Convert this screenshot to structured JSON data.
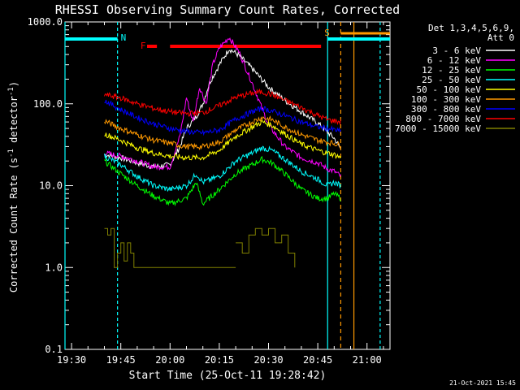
{
  "chart_data": {
    "type": "line",
    "title": "RHESSI Observing Summary Count Rates, Corrected",
    "xlabel": "Start Time (25-Oct-11 19:28:42)",
    "ylabel": "Corrected Count Rate (s⁻¹ detector⁻¹)",
    "ylabel_main": "Corrected Count Rate (s",
    "ylabel_sup1": "-1",
    "ylabel_mid": " detector",
    "ylabel_sup2": "-1",
    "ylabel_end": ")",
    "y_scale": "log",
    "ylim": [
      0.1,
      1000
    ],
    "y_ticks": [
      "1000.0",
      "100.0",
      "10.0",
      "1.0",
      "0.1"
    ],
    "xlim": [
      "19:28",
      "21:07"
    ],
    "x_ticks": [
      "19:30",
      "19:45",
      "20:00",
      "20:15",
      "20:30",
      "20:45",
      "21:00"
    ],
    "legend_header": [
      "Det 1,3,4,5,6,9,",
      "Att 0"
    ],
    "legend_position": "top-right",
    "timestamp": "21-Oct-2021 15:45",
    "markers": {
      "N": "N",
      "F": "F",
      "S": "S"
    },
    "series": [
      {
        "name": "3 - 6 keV",
        "color": "#ffffff",
        "points": [
          [
            "19:40",
            24
          ],
          [
            "19:45",
            22
          ],
          [
            "19:50",
            19
          ],
          [
            "19:55",
            17
          ],
          [
            "20:00",
            18
          ],
          [
            "20:03",
            30
          ],
          [
            "20:05",
            50
          ],
          [
            "20:08",
            70
          ],
          [
            "20:10",
            100
          ],
          [
            "20:12",
            180
          ],
          [
            "20:15",
            300
          ],
          [
            "20:18",
            470
          ],
          [
            "20:21",
            390
          ],
          [
            "20:25",
            270
          ],
          [
            "20:30",
            160
          ],
          [
            "20:35",
            110
          ],
          [
            "20:40",
            80
          ],
          [
            "20:45",
            58
          ],
          [
            "20:48",
            45
          ],
          [
            "20:50",
            38
          ],
          [
            "20:52",
            28
          ]
        ]
      },
      {
        "name": "6 - 12 keV",
        "color": "#ff00ff",
        "points": [
          [
            "19:40",
            25
          ],
          [
            "19:45",
            23
          ],
          [
            "19:50",
            20
          ],
          [
            "19:55",
            17
          ],
          [
            "20:00",
            17
          ],
          [
            "20:03",
            40
          ],
          [
            "20:05",
            120
          ],
          [
            "20:07",
            60
          ],
          [
            "20:09",
            160
          ],
          [
            "20:11",
            100
          ],
          [
            "20:13",
            300
          ],
          [
            "20:15",
            480
          ],
          [
            "20:18",
            650
          ],
          [
            "20:21",
            430
          ],
          [
            "20:25",
            180
          ],
          [
            "20:30",
            55
          ],
          [
            "20:35",
            30
          ],
          [
            "20:40",
            22
          ],
          [
            "20:45",
            19
          ],
          [
            "20:48",
            16
          ],
          [
            "20:50",
            15
          ],
          [
            "20:52",
            13
          ]
        ]
      },
      {
        "name": "12 - 25 keV",
        "color": "#00ff00",
        "points": [
          [
            "19:40",
            20
          ],
          [
            "19:45",
            14
          ],
          [
            "19:50",
            10
          ],
          [
            "19:55",
            7.5
          ],
          [
            "20:00",
            6
          ],
          [
            "20:05",
            7
          ],
          [
            "20:08",
            11
          ],
          [
            "20:10",
            6
          ],
          [
            "20:15",
            9
          ],
          [
            "20:20",
            14
          ],
          [
            "20:25",
            18
          ],
          [
            "20:28",
            21
          ],
          [
            "20:31",
            19
          ],
          [
            "20:35",
            14
          ],
          [
            "20:40",
            9
          ],
          [
            "20:45",
            7
          ],
          [
            "20:48",
            7
          ],
          [
            "20:50",
            8
          ],
          [
            "20:52",
            7
          ]
        ]
      },
      {
        "name": "25 - 50 keV",
        "color": "#00ffff",
        "points": [
          [
            "19:40",
            23
          ],
          [
            "19:45",
            18
          ],
          [
            "19:50",
            13
          ],
          [
            "19:55",
            10
          ],
          [
            "20:00",
            9
          ],
          [
            "20:05",
            10
          ],
          [
            "20:08",
            14
          ],
          [
            "20:10",
            11
          ],
          [
            "20:15",
            13
          ],
          [
            "20:20",
            20
          ],
          [
            "20:25",
            25
          ],
          [
            "20:28",
            29
          ],
          [
            "20:31",
            27
          ],
          [
            "20:35",
            21
          ],
          [
            "20:40",
            15
          ],
          [
            "20:45",
            12
          ],
          [
            "20:48",
            10
          ],
          [
            "20:50",
            11
          ],
          [
            "20:52",
            10
          ]
        ]
      },
      {
        "name": "50 - 100 keV",
        "color": "#ffff00",
        "points": [
          [
            "19:40",
            43
          ],
          [
            "19:45",
            36
          ],
          [
            "19:50",
            29
          ],
          [
            "19:55",
            25
          ],
          [
            "20:00",
            23
          ],
          [
            "20:05",
            22
          ],
          [
            "20:10",
            22
          ],
          [
            "20:15",
            27
          ],
          [
            "20:20",
            40
          ],
          [
            "20:25",
            52
          ],
          [
            "20:28",
            60
          ],
          [
            "20:31",
            55
          ],
          [
            "20:35",
            43
          ],
          [
            "20:40",
            32
          ],
          [
            "20:45",
            27
          ],
          [
            "20:48",
            25
          ],
          [
            "20:50",
            24
          ],
          [
            "20:52",
            22
          ]
        ]
      },
      {
        "name": "100 - 300 keV",
        "color": "#ff9900",
        "points": [
          [
            "19:40",
            62
          ],
          [
            "19:45",
            50
          ],
          [
            "19:50",
            42
          ],
          [
            "19:55",
            36
          ],
          [
            "20:00",
            33
          ],
          [
            "20:05",
            30
          ],
          [
            "20:10",
            30
          ],
          [
            "20:15",
            34
          ],
          [
            "20:20",
            48
          ],
          [
            "20:25",
            60
          ],
          [
            "20:28",
            68
          ],
          [
            "20:31",
            64
          ],
          [
            "20:35",
            52
          ],
          [
            "20:40",
            42
          ],
          [
            "20:45",
            36
          ],
          [
            "20:48",
            34
          ],
          [
            "20:50",
            33
          ],
          [
            "20:52",
            31
          ]
        ]
      },
      {
        "name": "300 - 800 keV",
        "color": "#0000ff",
        "points": [
          [
            "19:40",
            110
          ],
          [
            "19:45",
            85
          ],
          [
            "19:50",
            68
          ],
          [
            "19:55",
            57
          ],
          [
            "20:00",
            50
          ],
          [
            "20:05",
            46
          ],
          [
            "20:10",
            44
          ],
          [
            "20:15",
            48
          ],
          [
            "20:20",
            65
          ],
          [
            "20:25",
            80
          ],
          [
            "20:28",
            88
          ],
          [
            "20:31",
            82
          ],
          [
            "20:35",
            72
          ],
          [
            "20:40",
            60
          ],
          [
            "20:45",
            52
          ],
          [
            "20:48",
            50
          ],
          [
            "20:50",
            48
          ],
          [
            "20:52",
            46
          ]
        ]
      },
      {
        "name": "800 - 7000 keV",
        "color": "#ff0000",
        "points": [
          [
            "19:40",
            130
          ],
          [
            "19:45",
            118
          ],
          [
            "19:50",
            100
          ],
          [
            "19:55",
            88
          ],
          [
            "20:00",
            80
          ],
          [
            "20:05",
            76
          ],
          [
            "20:10",
            78
          ],
          [
            "20:15",
            95
          ],
          [
            "20:20",
            120
          ],
          [
            "20:25",
            135
          ],
          [
            "20:28",
            140
          ],
          [
            "20:31",
            130
          ],
          [
            "20:35",
            110
          ],
          [
            "20:40",
            90
          ],
          [
            "20:45",
            72
          ],
          [
            "20:48",
            64
          ],
          [
            "20:50",
            62
          ],
          [
            "20:52",
            60
          ]
        ]
      },
      {
        "name": "7000 - 15000 keV",
        "color": "#808000",
        "points": [
          [
            "19:40",
            3
          ],
          [
            "19:41",
            2.5
          ],
          [
            "19:42",
            3
          ],
          [
            "19:43",
            1
          ],
          [
            "19:44",
            1.5
          ],
          [
            "19:45",
            2
          ],
          [
            "19:46",
            1.2
          ],
          [
            "19:47",
            2
          ],
          [
            "19:48",
            1.5
          ],
          [
            "19:49",
            1
          ],
          [
            "19:50",
            1
          ],
          [
            "20:20",
            2
          ],
          [
            "20:22",
            1.5
          ],
          [
            "20:24",
            2.5
          ],
          [
            "20:26",
            3
          ],
          [
            "20:28",
            2.5
          ],
          [
            "20:30",
            3
          ],
          [
            "20:32",
            2
          ],
          [
            "20:34",
            2.5
          ],
          [
            "20:36",
            1.5
          ],
          [
            "20:38",
            1
          ]
        ]
      }
    ]
  }
}
